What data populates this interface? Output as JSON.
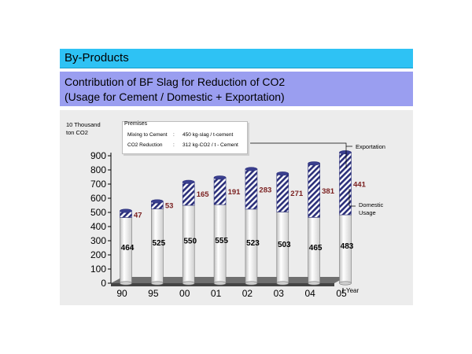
{
  "header": {
    "section_title": "By-Products",
    "subtitle_line1": "Contribution of BF Slag for Reduction of CO2",
    "subtitle_line2": "(Usage for Cement / Domestic + Exportation)"
  },
  "premises": {
    "heading": "Premises",
    "rows": [
      {
        "label": "Mixing to Cement",
        "sep": ":",
        "value": "450 kg-slag / t-cement"
      },
      {
        "label": "CO2 Reduction",
        "sep": ":",
        "value": "312 kg-CO2 / t - Cement"
      }
    ]
  },
  "colors": {
    "top_bar": "#2ec2f4",
    "sub_bar": "#9a9ef0",
    "domestic": "#ffffff",
    "exportation_hatch": "#2b2f7a",
    "export_label": "#7a1f1f"
  },
  "chart_data": {
    "type": "bar",
    "stacked": true,
    "unit_label": "10 Thousand\nton  CO2",
    "xlabel": "Year",
    "categories": [
      "90",
      "95",
      "00",
      "01",
      "02",
      "03",
      "04",
      "05"
    ],
    "series": [
      {
        "name": "Domestic\nUsage",
        "values": [
          464,
          525,
          550,
          555,
          523,
          503,
          465,
          483
        ]
      },
      {
        "name": "Exportation",
        "values": [
          47,
          53,
          165,
          191,
          283,
          271,
          381,
          441
        ]
      }
    ],
    "ylim": [
      0,
      900
    ],
    "yticks": [
      0,
      100,
      200,
      300,
      400,
      500,
      600,
      700,
      800,
      900
    ]
  }
}
